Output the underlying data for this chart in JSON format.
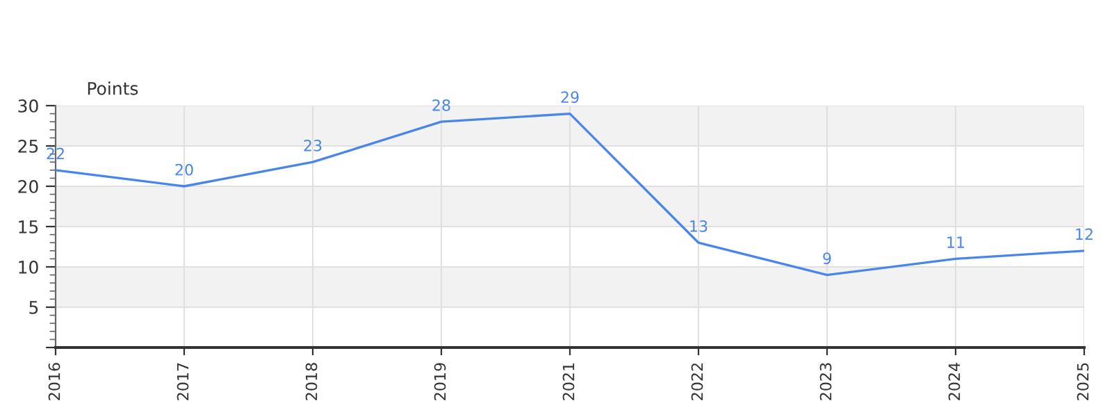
{
  "chart_data": {
    "type": "line",
    "ylabel": "Points",
    "categories": [
      "2016",
      "2017",
      "2018",
      "2019",
      "2021",
      "2022",
      "2023",
      "2024",
      "2025"
    ],
    "series": [
      {
        "color": "#4a86e8",
        "values": [
          22,
          20,
          23,
          28,
          29,
          13,
          9,
          11,
          12
        ]
      }
    ],
    "ylim": [
      0,
      30
    ],
    "yticks": [
      {
        "value": 0,
        "label": null
      },
      5,
      10,
      15,
      20,
      25,
      30
    ],
    "grid": true,
    "data_labels": true,
    "marker": "none",
    "line_style": "solid",
    "bands": [
      {
        "axis": "y",
        "from": 25,
        "to": 30,
        "color": "#f2f2f2"
      },
      {
        "axis": "y",
        "from": 15,
        "to": 20,
        "color": "#f2f2f2"
      },
      {
        "axis": "y",
        "from": 5,
        "to": 10,
        "color": "#f2f2f2"
      }
    ]
  }
}
